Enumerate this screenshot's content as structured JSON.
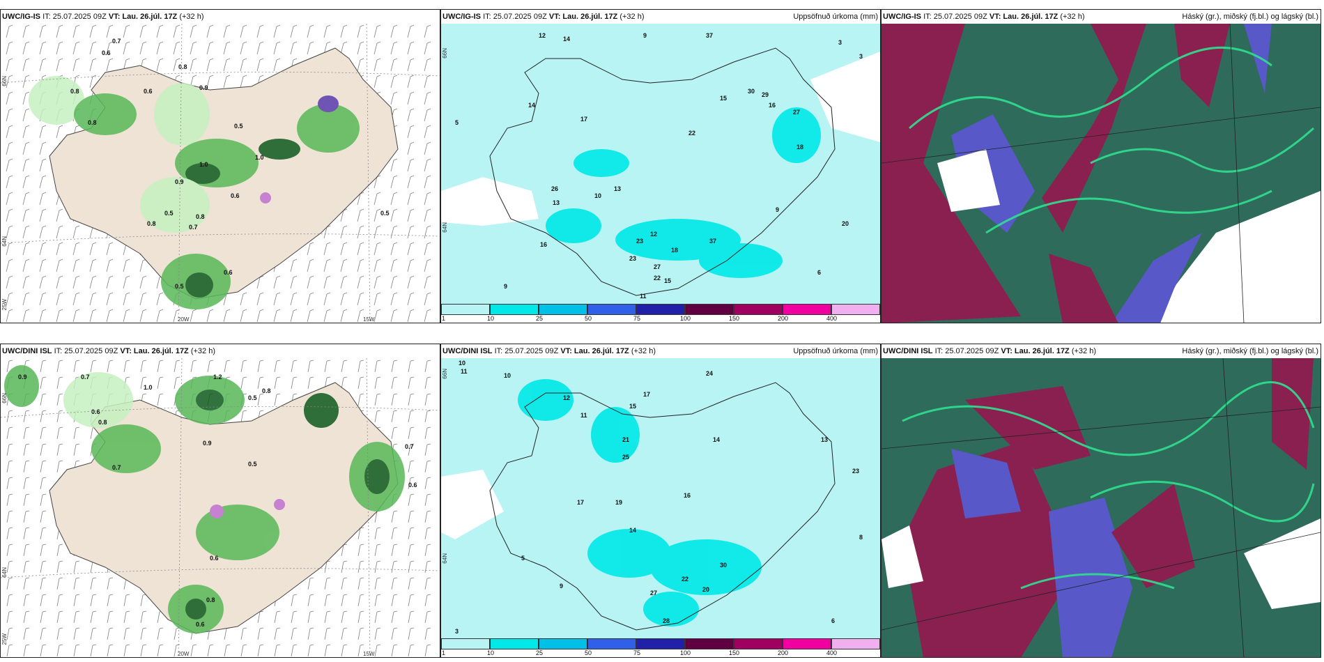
{
  "panels": [
    {
      "id": "p1",
      "model": "UWC/IG-IS",
      "it": "IT: 25.07.2025 09Z",
      "vt_label": "VT:",
      "vt": "Lau. 26.júl. 17Z",
      "lead": "(+32 h)",
      "right_title": ""
    },
    {
      "id": "p2",
      "model": "UWC/IG-IS",
      "it": "IT: 25.07.2025 09Z",
      "vt_label": "VT:",
      "vt": "Lau. 26.júl. 17Z",
      "lead": "(+32 h)",
      "right_title": "Uppsöfnuð úrkoma (mm)"
    },
    {
      "id": "p3",
      "model": "UWC/IG-IS",
      "it": "IT: 25.07.2025 09Z",
      "vt_label": "VT:",
      "vt": "Lau. 26.júl. 17Z",
      "lead": "(+32 h)",
      "right_title": "Háský (gr.), miðský (fj.bl.) og lágský (bl.)"
    },
    {
      "id": "p4",
      "model": "UWC/DINI ISL",
      "it": "IT: 25.07.2025 09Z",
      "vt_label": "VT:",
      "vt": "Lau. 26.júl. 17Z",
      "lead": "(+32 h)",
      "right_title": ""
    },
    {
      "id": "p5",
      "model": "UWC/DINI ISL",
      "it": "IT: 25.07.2025 09Z",
      "vt_label": "VT:",
      "vt": "Lau. 26.júl. 17Z",
      "lead": "(+32 h)",
      "right_title": "Uppsöfnuð úrkoma (mm)"
    },
    {
      "id": "p6",
      "model": "UWC/DINI ISL",
      "it": "IT: 25.07.2025 09Z",
      "vt_label": "VT:",
      "vt": "Lau. 26.júl. 17Z",
      "lead": "(+32 h)",
      "right_title": "Háský (gr.), miðský (fj.bl.) og lágský (bl.)"
    }
  ],
  "precip_colorbar": {
    "ticks": [
      "1",
      "10",
      "25",
      "50",
      "75",
      "100",
      "150",
      "200",
      "400"
    ],
    "colors": [
      "#b8f4f4",
      "#00e8e8",
      "#00c0e8",
      "#3060e8",
      "#2020a8",
      "#600040",
      "#a00060",
      "#f000a0",
      "#f0b0f0"
    ]
  },
  "axis_labels": {
    "lat_top": "66N",
    "lat_bottom": "64N",
    "lat_corner": "25W",
    "lon_left": "20W",
    "lon_right": "15W",
    "lat_precip_top": "66N",
    "lat_precip_bottom": "64N"
  },
  "map_colors": {
    "land": "#efe3d6",
    "sea": "#ffffff",
    "green_light": "#c6f0c0",
    "green_mid": "#58b858",
    "green_dark": "#0f5a1e",
    "purple": "#5a3cb0",
    "precip_light": "#b8f4f4",
    "precip_mid": "#00e8e8",
    "cloud_high": "#2e6b5a",
    "cloud_mid": "#8a2050",
    "cloud_low": "#5858c8"
  },
  "precip_values_1": [
    "12",
    "14",
    "9",
    "37",
    "3",
    "3",
    "14",
    "5",
    "13",
    "30",
    "29",
    "16",
    "17",
    "15",
    "10",
    "13",
    "18",
    "22",
    "27",
    "9",
    "16",
    "26",
    "20",
    "12",
    "23",
    "27",
    "18",
    "37",
    "23",
    "22",
    "15",
    "9",
    "11",
    "6"
  ],
  "precip_values_2": [
    "10",
    "11",
    "10",
    "24",
    "12",
    "11",
    "15",
    "17",
    "21",
    "25",
    "14",
    "19",
    "17",
    "30",
    "22",
    "20",
    "23",
    "27",
    "28",
    "16",
    "14",
    "13",
    "9",
    "5",
    "8",
    "3",
    "6"
  ],
  "cp_values_1": [
    "0.7",
    "0.6",
    "0.8",
    "0.8",
    "0.9",
    "0.6",
    "0.5",
    "1.0",
    "0.8",
    "1.0",
    "0.8",
    "0.9",
    "0.6",
    "0.5",
    "0.8",
    "0.7",
    "0.6",
    "0.5",
    "0.5"
  ],
  "cp_values_2": [
    "0.9",
    "0.7",
    "0.6",
    "0.8",
    "1.0",
    "0.5",
    "0.8",
    "0.7",
    "1.2",
    "0.9",
    "0.5",
    "0.7",
    "0.6",
    "0.6",
    "0.8",
    "0.6"
  ]
}
